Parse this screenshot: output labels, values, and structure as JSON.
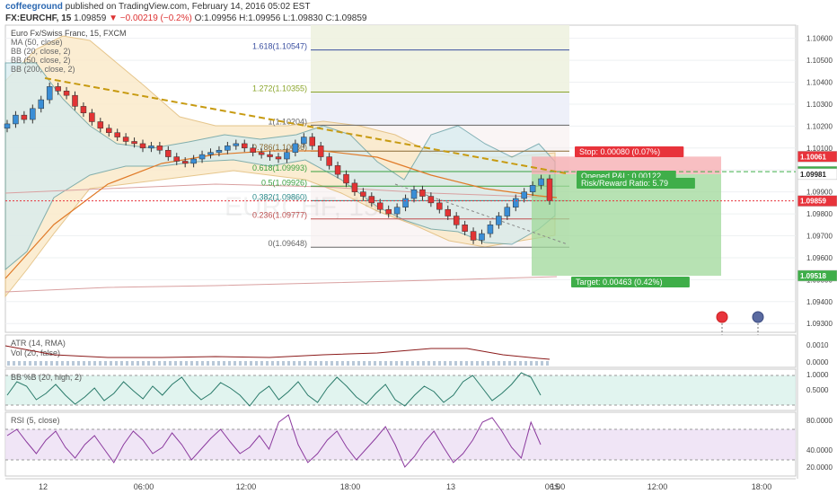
{
  "header": {
    "author": "coffeeground",
    "published_text": "published on TradingView.com, February 14, 2016 05:02 EST",
    "symbol": "FX:EURCHF, 15",
    "last": "1.09859",
    "change": "−0.00219 (−0.2%)",
    "o": "O:1.09956",
    "h": "H:1.09956",
    "l": "L:1.09830",
    "c": "C:1.09859"
  },
  "legend": {
    "title": "Euro Fx/Swiss Franc, 15, FXCM",
    "items": [
      "MA (50, close)",
      "BB (20, close, 2)",
      "BB (50, close, 2)",
      "BB (200, close, 2)"
    ]
  },
  "fib_levels": [
    {
      "label": "1.618(1.10547)",
      "value": 1.10547,
      "color": "#3a4fa0"
    },
    {
      "label": "1.272(1.10355)",
      "value": 1.10355,
      "color": "#8aa52a"
    },
    {
      "label": "1(1.10204)",
      "value": 1.10204,
      "color": "#666666"
    },
    {
      "label": "0.786(1.10086)",
      "value": 1.10086,
      "color": "#8a6a33"
    },
    {
      "label": "0.618(1.09993)",
      "value": 1.09993,
      "color": "#3aa040"
    },
    {
      "label": "0.5(1.09926)",
      "value": 1.09926,
      "color": "#3aa040"
    },
    {
      "label": "0.382(1.09860)",
      "value": 1.0986,
      "color": "#2a8a8a"
    },
    {
      "label": "0.236(1.09777)",
      "value": 1.09777,
      "color": "#c05050"
    },
    {
      "label": "0(1.09648)",
      "value": 1.09648,
      "color": "#666666"
    }
  ],
  "position": {
    "stop_label": "Stop: 0.00080 (0.07%)",
    "pnl_label": "Opened P&L: 0.00122",
    "rr_label": "Risk/Reward Ratio: 5.79",
    "target_label": "Target: 0.00463 (0.42%)",
    "entry": 1.09981,
    "stop": 1.10061,
    "target": 1.09518
  },
  "price_axis": {
    "ticks": [
      "1.10600",
      "1.10500",
      "1.10400",
      "1.10300",
      "1.10200",
      "1.10100",
      "1.10000",
      "1.09900",
      "1.09800",
      "1.09700",
      "1.09600",
      "1.09500",
      "1.09400",
      "1.09300"
    ],
    "min": 1.0926,
    "max": 1.1066,
    "tags": [
      {
        "text": "1.10061",
        "bg": "#e8333b",
        "fg": "#ffffff",
        "value": 1.10061
      },
      {
        "text": "1.09992",
        "bg": "#3fae49",
        "fg": "#ffffff",
        "value": 1.09992
      },
      {
        "text": "1.09981",
        "bg": "#ffffff",
        "fg": "#222222",
        "value": 1.09981
      },
      {
        "text": "1.09859",
        "bg": "#e8333b",
        "fg": "#ffffff",
        "value": 1.09859
      },
      {
        "text": "1.09518",
        "bg": "#3fae49",
        "fg": "#ffffff",
        "value": 1.09518
      }
    ]
  },
  "time_axis": [
    "12",
    "06:00",
    "12:00",
    "18:00",
    "13",
    "06:00",
    "12:00",
    "18:00",
    "15"
  ],
  "indicators": {
    "atr_label": "ATR (14, RMA)",
    "vol_label": "Vol (20, false)",
    "atr_ticks": [
      "0.0010",
      "0.0000"
    ],
    "bb_label": "BB %B (20, high, 2)",
    "bb_ticks": [
      "1.0000",
      "0.5000"
    ],
    "rsi_label": "RSI (5, close)",
    "rsi_ticks": [
      "80.0000",
      "40.0000",
      "20.0000"
    ]
  },
  "watermark": "EURCHF, 15",
  "colors": {
    "bull": "#3a8ed6",
    "bear": "#e23434",
    "accent_up": "#3fae49",
    "accent_down": "#e8333b",
    "rsi": "#8b3a9e",
    "bb": "#2a7a6a"
  },
  "chart_data": {
    "type": "candlestick",
    "title": "Euro Fx/Swiss Franc, 15, FXCM",
    "ylim": [
      1.0926,
      1.1066
    ],
    "close_series": [
      1.1021,
      1.1025,
      1.1023,
      1.1028,
      1.1032,
      1.1038,
      1.1036,
      1.1034,
      1.1029,
      1.1026,
      1.1022,
      1.1019,
      1.1017,
      1.1015,
      1.1013,
      1.1012,
      1.101,
      1.1011,
      1.1009,
      1.1006,
      1.1004,
      1.1003,
      1.1005,
      1.1007,
      1.1008,
      1.1009,
      1.1011,
      1.1012,
      1.101,
      1.1008,
      1.1007,
      1.1006,
      1.1005,
      1.1008,
      1.1012,
      1.1015,
      1.1011,
      1.1006,
      1.1002,
      1.0998,
      1.0994,
      1.099,
      1.0988,
      1.0985,
      1.0982,
      1.098,
      1.0983,
      1.0987,
      1.0991,
      1.0988,
      1.0985,
      1.0982,
      1.0979,
      1.0975,
      1.0972,
      1.0968,
      1.0971,
      1.0975,
      1.0979,
      1.0983,
      1.0987,
      1.099,
      1.0993,
      1.0996,
      1.0986
    ]
  }
}
